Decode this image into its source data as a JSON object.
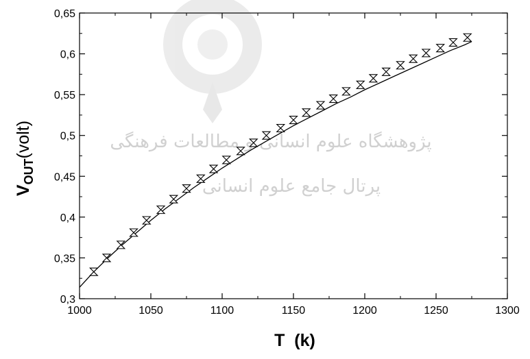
{
  "chart_data": {
    "type": "scatter",
    "title": "",
    "xlabel": "T  (k)",
    "ylabel_main": "V",
    "ylabel_sub": "OUT",
    "ylabel_unit": "(volt)",
    "xlim": [
      1000,
      1300
    ],
    "ylim": [
      0.3,
      0.65
    ],
    "x_ticks": [
      1000,
      1050,
      1100,
      1150,
      1200,
      1250,
      1300
    ],
    "x_tick_labels": [
      "1000",
      "1050",
      "1100",
      "1150",
      "1200",
      "1250",
      "1300"
    ],
    "y_ticks": [
      0.3,
      0.35,
      0.4,
      0.45,
      0.5,
      0.55,
      0.6,
      0.65
    ],
    "y_tick_labels": [
      "0,3",
      "0,35",
      "0,4",
      "0,45",
      "0,5",
      "0,55",
      "0,6",
      "0,65"
    ],
    "grid": false,
    "legend": "none",
    "series": [
      {
        "marker": "hourglass",
        "x": [
          1010,
          1019,
          1029,
          1038,
          1047,
          1057,
          1066,
          1075,
          1085,
          1094,
          1103,
          1113,
          1122,
          1131,
          1141,
          1150,
          1159,
          1169,
          1178,
          1187,
          1197,
          1206,
          1215,
          1225,
          1234,
          1243,
          1253,
          1262,
          1272
        ],
        "y": [
          0.333,
          0.35,
          0.366,
          0.381,
          0.396,
          0.409,
          0.422,
          0.435,
          0.447,
          0.459,
          0.47,
          0.481,
          0.491,
          0.5,
          0.509,
          0.519,
          0.528,
          0.537,
          0.545,
          0.554,
          0.562,
          0.57,
          0.578,
          0.586,
          0.594,
          0.601,
          0.607,
          0.614,
          0.62
        ]
      },
      {
        "style": "line",
        "x": [
          1000,
          1010,
          1020,
          1030,
          1040,
          1050,
          1060,
          1070,
          1080,
          1090,
          1100,
          1110,
          1120,
          1130,
          1140,
          1150,
          1160,
          1170,
          1180,
          1190,
          1200,
          1210,
          1220,
          1230,
          1240,
          1250,
          1260,
          1270,
          1275
        ],
        "y": [
          0.314,
          0.333,
          0.35,
          0.366,
          0.381,
          0.396,
          0.41,
          0.423,
          0.436,
          0.448,
          0.46,
          0.471,
          0.482,
          0.492,
          0.502,
          0.512,
          0.521,
          0.53,
          0.539,
          0.547,
          0.556,
          0.564,
          0.572,
          0.58,
          0.588,
          0.596,
          0.604,
          0.611,
          0.615
        ]
      }
    ]
  },
  "watermark": {
    "line1": "پژوهشگاه علوم انسانی و مطالعات فرهنگی",
    "line2": "پرتال جامع علوم انسانی"
  }
}
